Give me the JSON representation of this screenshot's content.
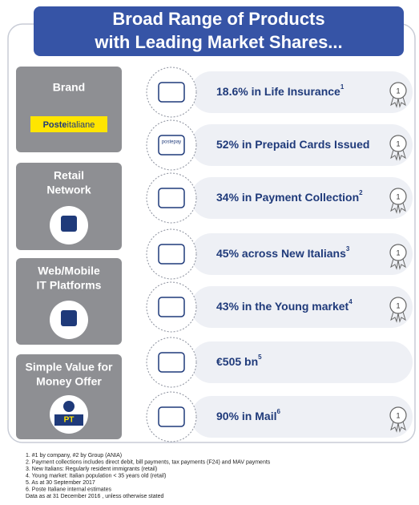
{
  "header": {
    "title_lines": [
      "Broad Range of Products",
      "with Leading Market Shares..."
    ]
  },
  "pillars": [
    {
      "label_lines": [
        "Brand"
      ],
      "logo": {
        "part1": "Poste",
        "part2": "italiane"
      }
    },
    {
      "label_lines": [
        "Retail",
        "Network"
      ]
    },
    {
      "label_lines": [
        "Web/Mobile",
        "IT Platforms"
      ]
    },
    {
      "label_lines": [
        "Simple Value for",
        "Money Offer"
      ],
      "badge": "PT"
    }
  ],
  "rows": [
    {
      "text": "18.6% in Life Insurance",
      "sup": "1",
      "medal": "1"
    },
    {
      "text": "52% in Prepaid Cards Issued",
      "icon_text": "postepay",
      "medal": "1"
    },
    {
      "text": "34% in Payment Collection",
      "sup": "2",
      "medal": "1"
    },
    {
      "text": "45% across New Italians",
      "sup": "3",
      "medal": "1"
    },
    {
      "text": "43% in the Young market",
      "sup": "4",
      "medal": "1"
    },
    {
      "text": "€505 bn",
      "sup": "5"
    },
    {
      "text": "90% in Mail",
      "sup": "6",
      "medal": "1"
    }
  ],
  "footnotes": [
    "1. #1 by company, #2 by Group (ANIA)",
    "2. Payment collections includes direct debit, bill payments, tax payments (F24) and MAV payments",
    "3. New Italians: Regularly resident immigrants (retail)",
    "4. Young market: Italian population < 35 years old (retail)",
    "5. As at 30 September 2017",
    "6. Poste Italiane internal estimates",
    "Data as at 31 December 2016 , unless otherwise stated"
  ]
}
